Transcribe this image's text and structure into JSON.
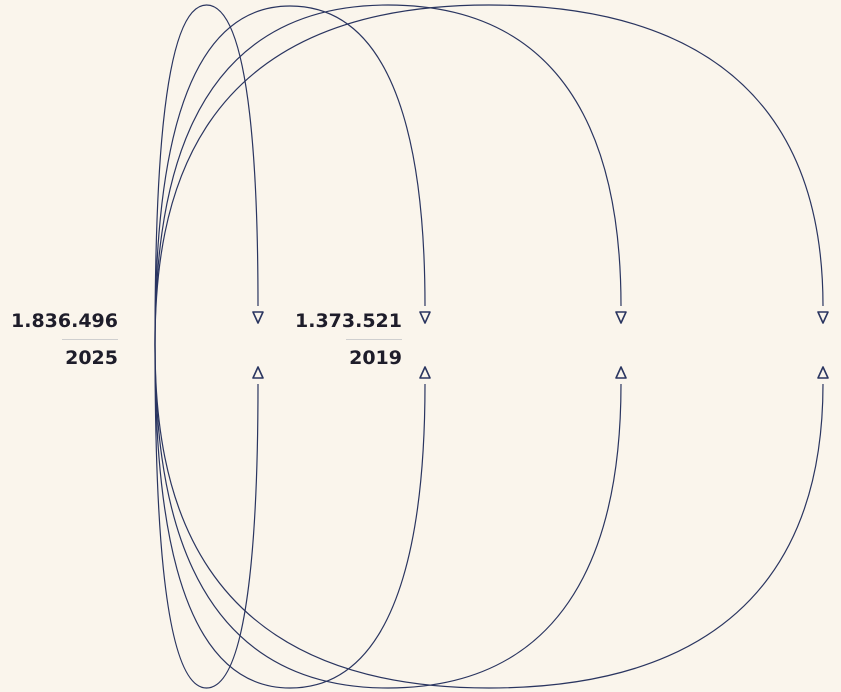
{
  "colors": {
    "background": "#faf5ec",
    "arc": "#2a3560",
    "text": "#1e1d2a",
    "divider": "#cfcfcf"
  },
  "figures": [
    {
      "value": "1.836.496",
      "year": "2025"
    },
    {
      "value": "1.373.521",
      "year": "2019"
    }
  ],
  "arc_count": 4
}
